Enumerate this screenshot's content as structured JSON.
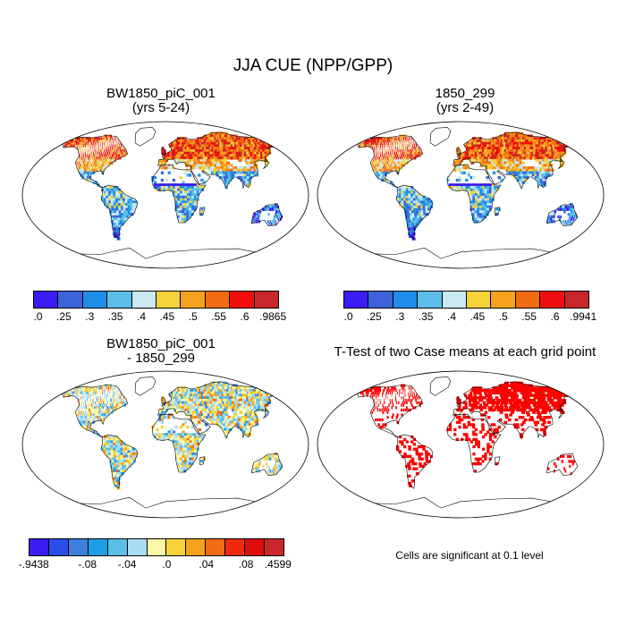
{
  "main_title": "JJA CUE (NPP/GPP)",
  "panels": [
    {
      "id": "p1",
      "title": "BW1850_piC_001\n(yrs 5-24)",
      "kind": "cue"
    },
    {
      "id": "p2",
      "title": "1850_299\n(yrs 2-49)",
      "kind": "cue"
    },
    {
      "id": "p3",
      "title": "BW1850_piC_001\n- 1850_299",
      "kind": "diff"
    },
    {
      "id": "p4",
      "title": "T-Test of two Case means at each grid point",
      "kind": "ttest"
    }
  ],
  "colorbars": {
    "cb1": {
      "colors": [
        "#3a1cf4",
        "#3d63da",
        "#1e8ee8",
        "#5cbde8",
        "#c9e8f2",
        "#f5d23a",
        "#f5a21e",
        "#f26c14",
        "#ef0d0d",
        "#c9262a"
      ],
      "labels": [
        ".0",
        ".25",
        ".3",
        ".35",
        ".4",
        ".45",
        ".5",
        ".55",
        ".6",
        ".9865"
      ]
    },
    "cb2": {
      "colors": [
        "#3a1cf4",
        "#3d63da",
        "#1e8ee8",
        "#5cbde8",
        "#c9e8f2",
        "#f5d23a",
        "#f5a21e",
        "#f26c14",
        "#ef0d0d",
        "#c9262a"
      ],
      "labels": [
        ".0",
        ".25",
        ".3",
        ".35",
        ".4",
        ".45",
        ".5",
        ".55",
        ".6",
        ".9941"
      ]
    },
    "cb3": {
      "colors": [
        "#3a1cf4",
        "#2c4ee8",
        "#3d7fe0",
        "#1e9ee8",
        "#5cbde8",
        "#a9dcf4",
        "#fff7a8",
        "#f5d23a",
        "#f5a21e",
        "#f26c14",
        "#ef2a0d",
        "#e00d0d",
        "#c9262a"
      ],
      "labels": [
        "-.9438",
        "-.08",
        "-.04",
        ".0",
        ".04",
        ".08",
        ".4599"
      ]
    }
  },
  "ttest_note": "Cells are significant at 0.1 level"
}
